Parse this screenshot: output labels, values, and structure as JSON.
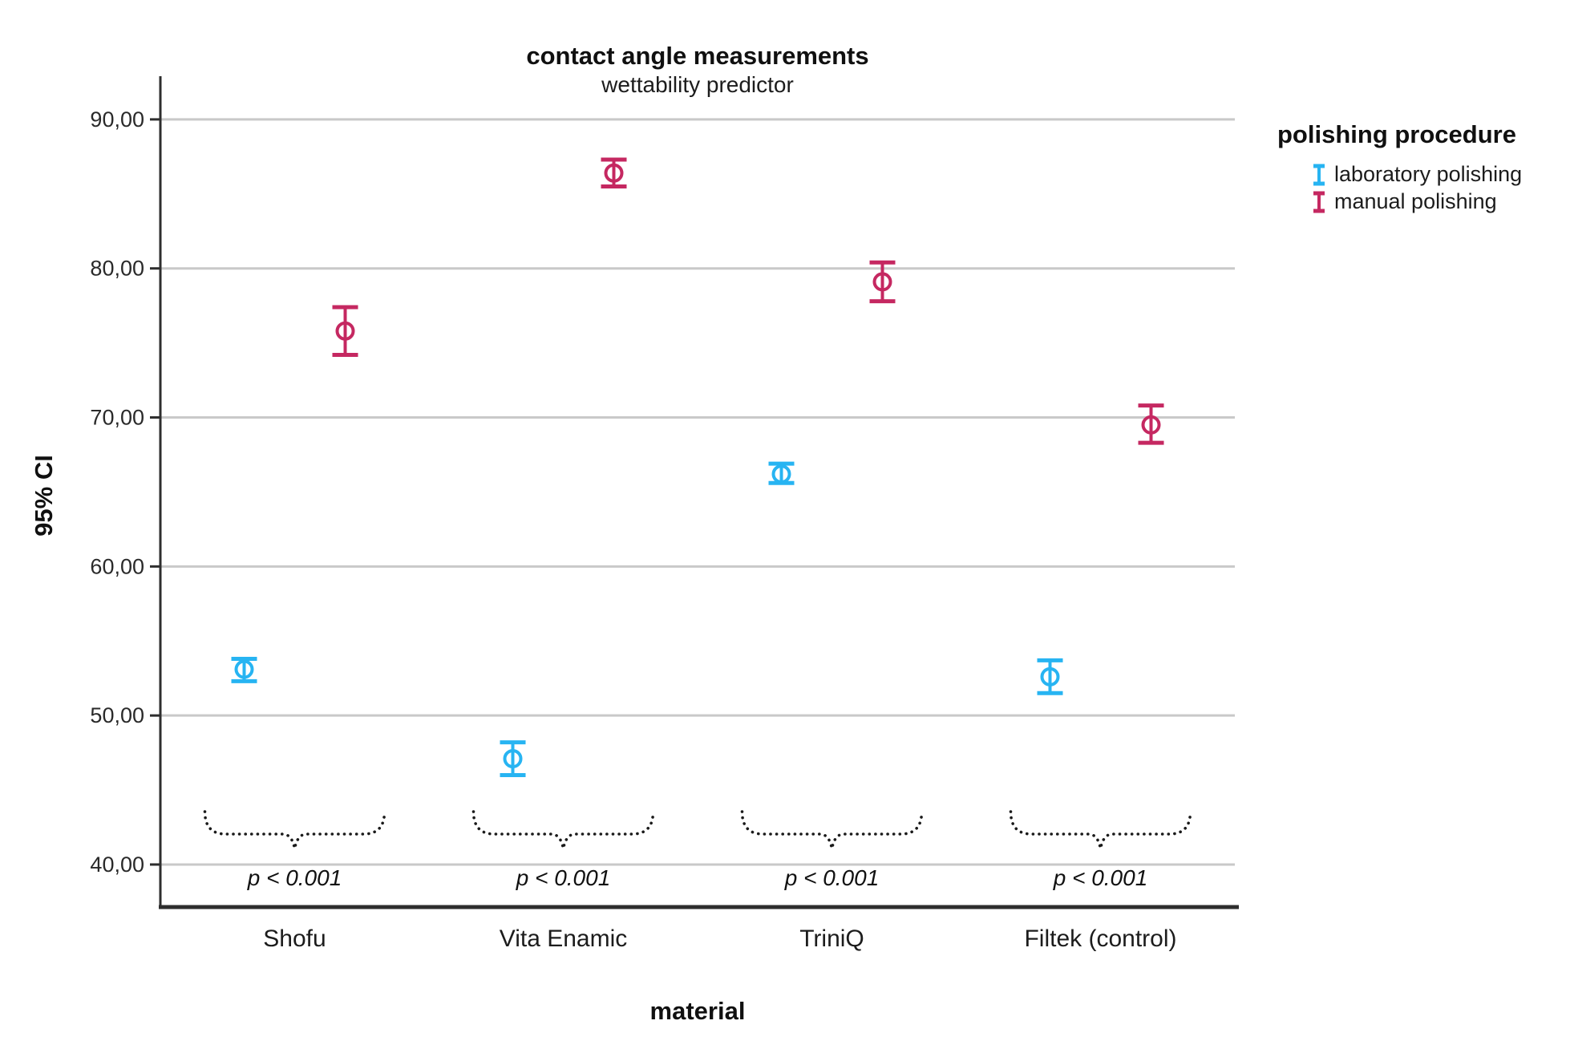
{
  "chart_data": {
    "type": "errorbar",
    "title": "contact angle measurements",
    "subtitle": "wettability predictor",
    "xlabel": "material",
    "ylabel": "95% CI",
    "categories": [
      "Shofu",
      "Vita Enamic",
      "TriniQ",
      "Filtek (control)"
    ],
    "axis": {
      "ylim": [
        37.2,
        92.9
      ],
      "ytick_values": [
        40,
        50,
        60,
        70,
        80,
        90
      ],
      "ytick_labels": [
        "40,00",
        "50,00",
        "60,00",
        "70,00",
        "80,00",
        "90,00"
      ],
      "grid": true
    },
    "legend": {
      "title": "polishing procedure",
      "position": "right"
    },
    "series": [
      {
        "name": "laboratory polishing",
        "color": "#27b4f2",
        "means": [
          53.1,
          47.1,
          66.2,
          52.6
        ],
        "ci_low": [
          52.3,
          46.0,
          65.6,
          51.5
        ],
        "ci_high": [
          53.8,
          48.2,
          66.9,
          53.7
        ]
      },
      {
        "name": "manual polishing",
        "color": "#c52861",
        "means": [
          75.8,
          86.4,
          79.1,
          69.5
        ],
        "ci_low": [
          74.2,
          85.5,
          77.8,
          68.3
        ],
        "ci_high": [
          77.4,
          87.3,
          80.4,
          70.8
        ]
      }
    ],
    "annotations": {
      "per_category_labels": [
        "p < 0.001",
        "p < 0.001",
        "p < 0.001",
        "p < 0.001"
      ]
    }
  },
  "colors": {
    "grid": "#c9c9c9",
    "axis": "#2e2e2e",
    "brace": "#1a1a1a"
  }
}
